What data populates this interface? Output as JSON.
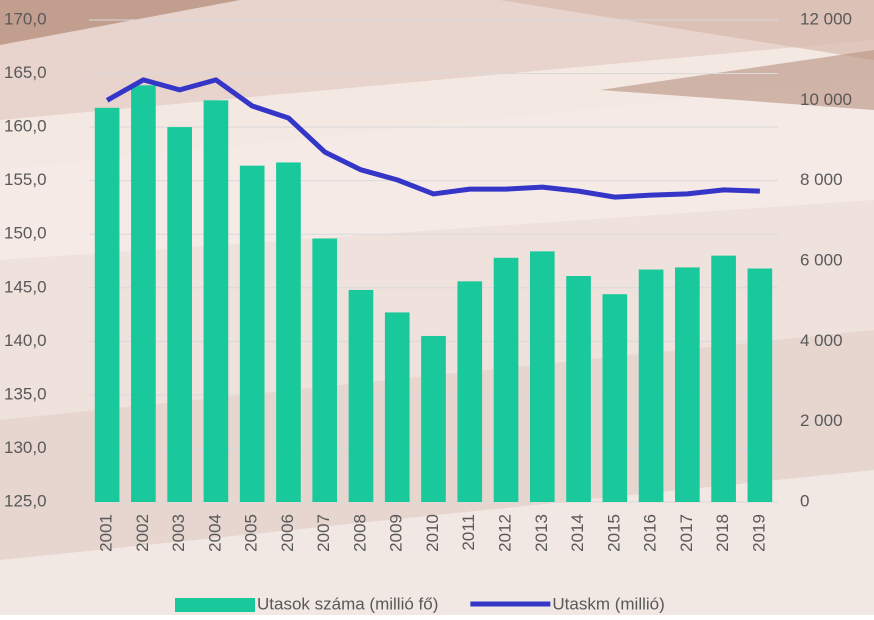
{
  "chart_data": {
    "type": "bar-line",
    "categories": [
      "2001",
      "2002",
      "2003",
      "2004",
      "2005",
      "2006",
      "2007",
      "2008",
      "2009",
      "2010",
      "2011",
      "2012",
      "2013",
      "2014",
      "2015",
      "2016",
      "2017",
      "2018",
      "2019"
    ],
    "series": [
      {
        "name": "Utasok száma (millió fő)",
        "type": "bar",
        "color": "#19c99b",
        "values": [
          161.8,
          163.9,
          160.0,
          162.5,
          156.4,
          156.7,
          149.6,
          144.8,
          142.7,
          140.5,
          145.6,
          147.8,
          148.4,
          146.1,
          144.4,
          146.7,
          146.9,
          148.0,
          146.8
        ]
      },
      {
        "name": "Utaskm (millió)",
        "type": "line",
        "axis": "y2",
        "color": "#3535c8",
        "values": [
          10000,
          10510,
          10260,
          10510,
          9860,
          9560,
          8715,
          8270,
          8020,
          7670,
          7790,
          7790,
          7840,
          7740,
          7590,
          7640,
          7670,
          7770,
          7740
        ]
      }
    ],
    "ylim": [
      125,
      170
    ],
    "yticks": [
      {
        "value": 125,
        "label": "125,0"
      },
      {
        "value": 130,
        "label": "130,0"
      },
      {
        "value": 135,
        "label": "135,0"
      },
      {
        "value": 140,
        "label": "140,0"
      },
      {
        "value": 145,
        "label": "145,0"
      },
      {
        "value": 150,
        "label": "150,0"
      },
      {
        "value": 155,
        "label": "155,0"
      },
      {
        "value": 160,
        "label": "160,0"
      },
      {
        "value": 165,
        "label": "165,0"
      },
      {
        "value": 170,
        "label": "170,0"
      }
    ],
    "y2lim": [
      0,
      12000
    ],
    "y2ticks": [
      0,
      {
        "value": 2000,
        "label": "2 000"
      },
      {
        "value": 4000,
        "label": "4 000"
      },
      {
        "value": 6000,
        "label": "6 000"
      },
      {
        "value": 8000,
        "label": "8 000"
      },
      {
        "value": 10000,
        "label": "10 000"
      },
      {
        "value": 12000,
        "label": "12 000"
      }
    ],
    "grid": true,
    "legend": "bottom"
  }
}
